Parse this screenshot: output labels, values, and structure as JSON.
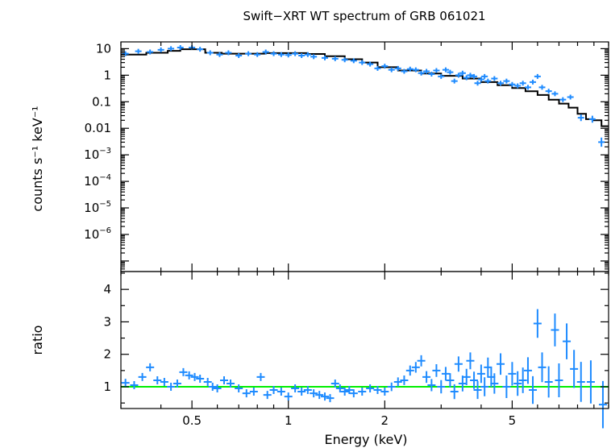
{
  "chart_data": [
    {
      "panel": "spectrum",
      "type": "scatter",
      "title": "Swift−XRT WT spectrum of GRB 061021",
      "xlabel": "",
      "ylabel": "counts s⁻¹ keV⁻¹",
      "xscale": "log",
      "yscale": "log",
      "xlim": [
        0.3,
        10
      ],
      "ylim": [
        4e-08,
        18
      ],
      "y_tick_labels": [
        {
          "value": 10,
          "label": "10"
        },
        {
          "value": 1,
          "label": "1"
        },
        {
          "value": 0.1,
          "label": "0.1"
        },
        {
          "value": 0.01,
          "label": "0.01"
        },
        {
          "value": 0.001,
          "base": "10",
          "exp": "−3"
        },
        {
          "value": 0.0001,
          "base": "10",
          "exp": "−4"
        },
        {
          "value": 1e-05,
          "base": "10",
          "exp": "−5"
        },
        {
          "value": 1e-06,
          "base": "10",
          "exp": "−6"
        }
      ],
      "colors": {
        "data": "#1e8bff",
        "model": "#000000"
      },
      "model_points": [
        [
          0.3,
          6.0
        ],
        [
          0.36,
          7.0
        ],
        [
          0.42,
          8.3
        ],
        [
          0.46,
          9.5
        ],
        [
          0.5,
          9.5
        ],
        [
          0.55,
          7.0
        ],
        [
          0.62,
          6.5
        ],
        [
          0.72,
          6.5
        ],
        [
          0.85,
          6.8
        ],
        [
          1.0,
          6.8
        ],
        [
          1.15,
          6.3
        ],
        [
          1.3,
          5.2
        ],
        [
          1.5,
          4.0
        ],
        [
          1.7,
          3.0
        ],
        [
          1.9,
          2.0
        ],
        [
          2.2,
          1.5
        ],
        [
          2.6,
          1.15
        ],
        [
          3.0,
          0.95
        ],
        [
          3.5,
          0.75
        ],
        [
          4.0,
          0.55
        ],
        [
          4.5,
          0.42
        ],
        [
          5.0,
          0.33
        ],
        [
          5.5,
          0.25
        ],
        [
          6.0,
          0.18
        ],
        [
          6.5,
          0.12
        ],
        [
          7.0,
          0.085
        ],
        [
          7.5,
          0.06
        ],
        [
          8.0,
          0.035
        ],
        [
          8.5,
          0.022
        ],
        [
          9.0,
          0.02
        ],
        [
          9.5,
          0.012
        ],
        [
          10.0,
          0.012
        ]
      ],
      "series": [
        {
          "points": [
            [
              0.31,
              6.5
            ],
            [
              0.34,
              8.0
            ],
            [
              0.37,
              7.5
            ],
            [
              0.4,
              9.0
            ],
            [
              0.43,
              10.0
            ],
            [
              0.46,
              11.0
            ],
            [
              0.5,
              11.0
            ],
            [
              0.53,
              9.5
            ],
            [
              0.57,
              7.0
            ],
            [
              0.61,
              6.0
            ],
            [
              0.65,
              7.0
            ],
            [
              0.7,
              5.5
            ],
            [
              0.75,
              6.5
            ],
            [
              0.8,
              6.0
            ],
            [
              0.85,
              7.5
            ],
            [
              0.9,
              6.5
            ],
            [
              0.95,
              6.0
            ],
            [
              1.0,
              5.8
            ],
            [
              1.05,
              6.5
            ],
            [
              1.1,
              5.5
            ],
            [
              1.15,
              6.0
            ],
            [
              1.2,
              5.0
            ],
            [
              1.3,
              4.5
            ],
            [
              1.4,
              4.2
            ],
            [
              1.5,
              3.8
            ],
            [
              1.6,
              3.5
            ],
            [
              1.7,
              3.0
            ],
            [
              1.8,
              2.6
            ],
            [
              1.9,
              1.8
            ],
            [
              2.0,
              2.2
            ],
            [
              2.1,
              1.6
            ],
            [
              2.2,
              1.8
            ],
            [
              2.3,
              1.4
            ],
            [
              2.4,
              1.7
            ],
            [
              2.5,
              1.6
            ],
            [
              2.6,
              1.2
            ],
            [
              2.7,
              1.4
            ],
            [
              2.8,
              1.1
            ],
            [
              2.9,
              1.5
            ],
            [
              3.0,
              0.9
            ],
            [
              3.1,
              1.6
            ],
            [
              3.2,
              1.3
            ],
            [
              3.3,
              0.6
            ],
            [
              3.4,
              1.0
            ],
            [
              3.5,
              1.2
            ],
            [
              3.6,
              0.8
            ],
            [
              3.7,
              1.0
            ],
            [
              3.8,
              0.9
            ],
            [
              3.9,
              0.5
            ],
            [
              4.0,
              0.7
            ],
            [
              4.1,
              0.9
            ],
            [
              4.2,
              0.6
            ],
            [
              4.4,
              0.75
            ],
            [
              4.6,
              0.5
            ],
            [
              4.8,
              0.6
            ],
            [
              5.0,
              0.45
            ],
            [
              5.2,
              0.4
            ],
            [
              5.4,
              0.5
            ],
            [
              5.6,
              0.35
            ],
            [
              5.8,
              0.55
            ],
            [
              6.0,
              0.9
            ],
            [
              6.2,
              0.35
            ],
            [
              6.5,
              0.25
            ],
            [
              6.8,
              0.2
            ],
            [
              7.2,
              0.12
            ],
            [
              7.6,
              0.15
            ],
            [
              8.2,
              0.025
            ],
            [
              8.9,
              0.022
            ],
            [
              9.5,
              0.003
            ]
          ]
        }
      ]
    },
    {
      "panel": "ratio",
      "type": "scatter",
      "title": "",
      "xlabel": "Energy (keV)",
      "ylabel": "ratio",
      "xscale": "log",
      "xlim": [
        0.3,
        10
      ],
      "ylim": [
        0.33,
        4.55
      ],
      "x_ticks": [
        {
          "value": 0.5,
          "label": "0.5"
        },
        {
          "value": 1,
          "label": "1"
        },
        {
          "value": 2,
          "label": "2"
        },
        {
          "value": 5,
          "label": "5"
        }
      ],
      "y_ticks": [
        1,
        2,
        3,
        4
      ],
      "reference_line": 1,
      "colors": {
        "data": "#1e8bff",
        "reference": "#00ee00"
      },
      "series": [
        {
          "points": [
            [
              0.31,
              1.12
            ],
            [
              0.33,
              1.05
            ],
            [
              0.35,
              1.3
            ],
            [
              0.37,
              1.6
            ],
            [
              0.39,
              1.2
            ],
            [
              0.41,
              1.15
            ],
            [
              0.43,
              1.0
            ],
            [
              0.45,
              1.1
            ],
            [
              0.47,
              1.45
            ],
            [
              0.49,
              1.35
            ],
            [
              0.51,
              1.3
            ],
            [
              0.53,
              1.25
            ],
            [
              0.56,
              1.15
            ],
            [
              0.58,
              1.0
            ],
            [
              0.6,
              0.95
            ],
            [
              0.63,
              1.2
            ],
            [
              0.66,
              1.1
            ],
            [
              0.7,
              0.95
            ],
            [
              0.74,
              0.8
            ],
            [
              0.78,
              0.85
            ],
            [
              0.82,
              1.3
            ],
            [
              0.86,
              0.75
            ],
            [
              0.9,
              0.9
            ],
            [
              0.95,
              0.85
            ],
            [
              1.0,
              0.7
            ],
            [
              1.05,
              0.95
            ],
            [
              1.1,
              0.85
            ],
            [
              1.15,
              0.9
            ],
            [
              1.2,
              0.8
            ],
            [
              1.25,
              0.75
            ],
            [
              1.3,
              0.7
            ],
            [
              1.35,
              0.65
            ],
            [
              1.4,
              1.1
            ],
            [
              1.45,
              0.95
            ],
            [
              1.5,
              0.85
            ],
            [
              1.55,
              0.9
            ],
            [
              1.6,
              0.8
            ],
            [
              1.7,
              0.85
            ],
            [
              1.8,
              0.95
            ],
            [
              1.9,
              0.9
            ],
            [
              2.0,
              0.85
            ],
            [
              2.1,
              1.0
            ],
            [
              2.2,
              1.15
            ],
            [
              2.3,
              1.2
            ],
            [
              2.4,
              1.5
            ],
            [
              2.5,
              1.6
            ],
            [
              2.6,
              1.8
            ],
            [
              2.7,
              1.3
            ],
            [
              2.8,
              1.05
            ],
            [
              2.9,
              1.5
            ],
            [
              3.0,
              1.0
            ],
            [
              3.1,
              1.4
            ],
            [
              3.2,
              1.2
            ],
            [
              3.3,
              0.85
            ],
            [
              3.4,
              1.7
            ],
            [
              3.5,
              1.1
            ],
            [
              3.6,
              1.3
            ],
            [
              3.7,
              1.8
            ],
            [
              3.8,
              1.2
            ],
            [
              3.9,
              0.9
            ],
            [
              4.0,
              1.4
            ],
            [
              4.1,
              1.0
            ],
            [
              4.2,
              1.6
            ],
            [
              4.3,
              1.3
            ],
            [
              4.4,
              1.1
            ],
            [
              4.6,
              1.7
            ],
            [
              4.8,
              1.0
            ],
            [
              5.0,
              1.4
            ],
            [
              5.2,
              1.1
            ],
            [
              5.4,
              1.2
            ],
            [
              5.6,
              1.5
            ],
            [
              5.8,
              0.9
            ],
            [
              6.0,
              2.95
            ],
            [
              6.2,
              1.6
            ],
            [
              6.5,
              1.15
            ],
            [
              6.8,
              2.75
            ],
            [
              7.0,
              1.2
            ],
            [
              7.4,
              2.4
            ],
            [
              7.8,
              1.55
            ],
            [
              8.2,
              1.15
            ],
            [
              8.8,
              1.15
            ],
            [
              9.6,
              0.45
            ]
          ]
        }
      ]
    }
  ]
}
